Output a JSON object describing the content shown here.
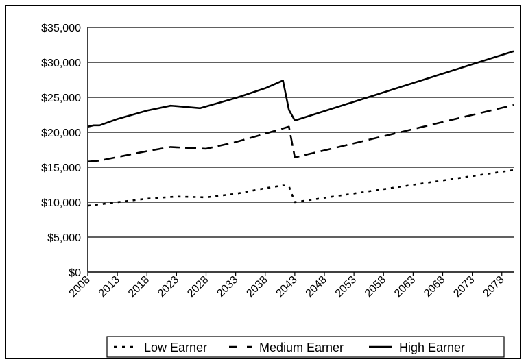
{
  "chart_data": {
    "type": "line",
    "title": "",
    "xlabel": "",
    "ylabel": "",
    "ylim": [
      0,
      35000
    ],
    "yticks": [
      "$0",
      "$5,000",
      "$10,000",
      "$15,000",
      "$20,000",
      "$25,000",
      "$30,000",
      "$35,000"
    ],
    "ytick_values": [
      0,
      5000,
      10000,
      15000,
      20000,
      25000,
      30000,
      35000
    ],
    "xlim": [
      2008,
      2080
    ],
    "xticks": [
      "2008",
      "2013",
      "2018",
      "2023",
      "2028",
      "2033",
      "2038",
      "2043",
      "2048",
      "2053",
      "2058",
      "2063",
      "2068",
      "2073",
      "2078"
    ],
    "xtick_values": [
      2008,
      2013,
      2018,
      2023,
      2028,
      2033,
      2038,
      2043,
      2048,
      2053,
      2058,
      2063,
      2068,
      2073,
      2078
    ],
    "grid": "horizontal",
    "legend_position": "bottom",
    "series": [
      {
        "name": "Low Earner",
        "style": "dotted",
        "color": "#000000",
        "x": [
          2008,
          2010,
          2018,
          2023,
          2028,
          2033,
          2038,
          2041,
          2042,
          2043,
          2080
        ],
        "y": [
          9500,
          9700,
          10500,
          10800,
          10700,
          11200,
          12000,
          12400,
          12300,
          10000,
          14600
        ]
      },
      {
        "name": "Medium Earner",
        "style": "dashed",
        "color": "#000000",
        "x": [
          2008,
          2010,
          2018,
          2022,
          2023,
          2028,
          2033,
          2038,
          2042,
          2043,
          2080
        ],
        "y": [
          15800,
          15950,
          17300,
          17900,
          17850,
          17650,
          18600,
          19800,
          20800,
          16400,
          23900
        ]
      },
      {
        "name": "High Earner",
        "style": "solid",
        "color": "#000000",
        "x": [
          2008,
          2009,
          2010,
          2013,
          2018,
          2022,
          2023,
          2027,
          2033,
          2038,
          2041,
          2042,
          2043,
          2080
        ],
        "y": [
          20800,
          21000,
          21000,
          21900,
          23100,
          23800,
          23750,
          23450,
          24900,
          26300,
          27400,
          23200,
          21700,
          31600
        ]
      }
    ]
  }
}
